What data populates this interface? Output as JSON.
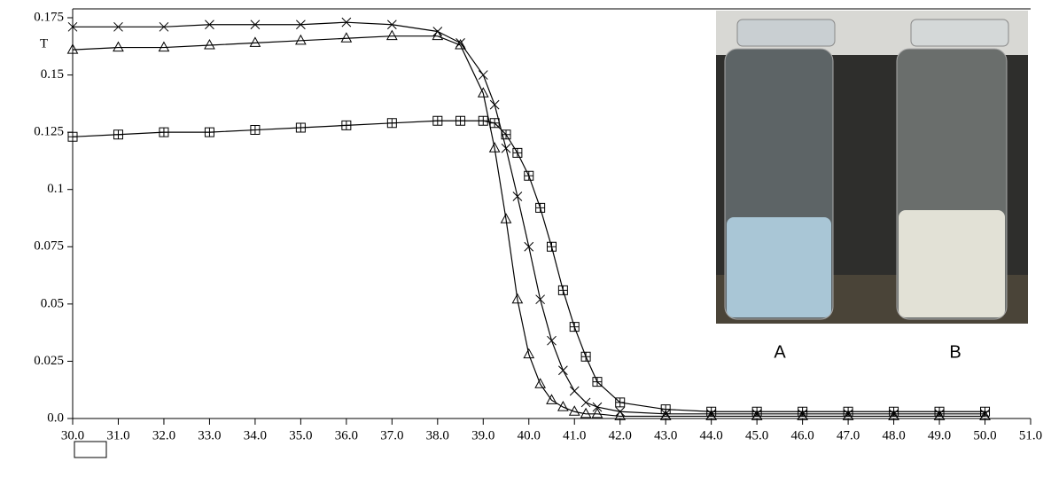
{
  "chart_data": {
    "type": "line",
    "y_label": "T",
    "x": [
      30,
      31,
      32,
      33,
      34,
      35,
      36,
      37,
      38,
      38.5,
      39,
      39.25,
      39.5,
      39.75,
      40,
      40.25,
      40.5,
      40.75,
      41,
      41.25,
      41.5,
      42,
      43,
      44,
      45,
      46,
      47,
      48,
      49,
      50
    ],
    "series": [
      {
        "color": "#000000",
        "marker": "triangle",
        "values": [
          0.161,
          0.162,
          0.162,
          0.163,
          0.164,
          0.165,
          0.166,
          0.167,
          0.167,
          0.163,
          0.142,
          0.118,
          0.087,
          0.052,
          0.028,
          0.015,
          0.008,
          0.005,
          0.003,
          0.002,
          0.002,
          0.001,
          0.001,
          0.001,
          0.001,
          0.001,
          0.001,
          0.001,
          0.001,
          0.001
        ]
      },
      {
        "color": "#000000",
        "marker": "x",
        "values": [
          0.171,
          0.171,
          0.171,
          0.172,
          0.172,
          0.172,
          0.173,
          0.172,
          0.169,
          0.164,
          0.15,
          0.137,
          0.118,
          0.097,
          0.075,
          0.052,
          0.034,
          0.021,
          0.012,
          0.007,
          0.005,
          0.003,
          0.002,
          0.002,
          0.002,
          0.002,
          0.002,
          0.002,
          0.002,
          0.002
        ]
      },
      {
        "color": "#000000",
        "marker": "square",
        "values": [
          0.123,
          0.124,
          0.125,
          0.125,
          0.126,
          0.127,
          0.128,
          0.129,
          0.13,
          0.13,
          0.13,
          0.129,
          0.124,
          0.116,
          0.106,
          0.092,
          0.075,
          0.056,
          0.04,
          0.027,
          0.016,
          0.007,
          0.004,
          0.003,
          0.003,
          0.003,
          0.003,
          0.003,
          0.003,
          0.003
        ]
      }
    ],
    "xlim": [
      30,
      51
    ],
    "xticks": [
      {
        "value": 30,
        "label": "30.0"
      },
      {
        "value": 31,
        "label": "31.0"
      },
      {
        "value": 32,
        "label": "32.0"
      },
      {
        "value": 33,
        "label": "33.0"
      },
      {
        "value": 34,
        "label": "34.0"
      },
      {
        "value": 35,
        "label": "35.0"
      },
      {
        "value": 36,
        "label": "36.0"
      },
      {
        "value": 37,
        "label": "37.0"
      },
      {
        "value": 38,
        "label": "38.0"
      },
      {
        "value": 39,
        "label": "39.0"
      },
      {
        "value": 40,
        "label": "40.0"
      },
      {
        "value": 41,
        "label": "41.0"
      },
      {
        "value": 42,
        "label": "42.0"
      },
      {
        "value": 43,
        "label": "43.0"
      },
      {
        "value": 44,
        "label": "44.0"
      },
      {
        "value": 45,
        "label": "45.0"
      },
      {
        "value": 46,
        "label": "46.0"
      },
      {
        "value": 47,
        "label": "47.0"
      },
      {
        "value": 48,
        "label": "48.0"
      },
      {
        "value": 49,
        "label": "49.0"
      },
      {
        "value": 50,
        "label": "50.0"
      },
      {
        "value": 51,
        "label": "51.0"
      }
    ],
    "ylim": [
      0,
      0.175
    ],
    "yticks": [
      {
        "value": 0,
        "label": "0.0"
      },
      0.025,
      0.05,
      0.075,
      0.1,
      0.125,
      0.15,
      0.175
    ],
    "inset_labels": [
      "A",
      "B"
    ]
  }
}
